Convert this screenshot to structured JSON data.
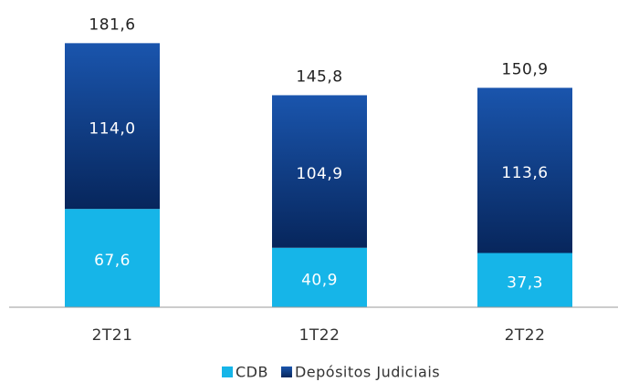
{
  "chart_data": {
    "type": "stacked_bar",
    "categories": [
      "2T21",
      "1T22",
      "2T22"
    ],
    "series": [
      {
        "name": "CDB",
        "color": "#16b5e8",
        "values": [
          67.6,
          40.9,
          37.3
        ],
        "value_labels": [
          "67,6",
          "40,9",
          "37,3"
        ]
      },
      {
        "name": "Depósitos Judiciais",
        "color": "#0d3a85",
        "values": [
          114.0,
          104.9,
          113.6
        ],
        "value_labels": [
          "114,0",
          "104,9",
          "113,6"
        ]
      }
    ],
    "totals": [
      181.6,
      145.8,
      150.9
    ],
    "total_labels": [
      "181,6",
      "145,8",
      "150,9"
    ],
    "ylim": [
      0,
      200
    ],
    "legend": "bottom"
  }
}
